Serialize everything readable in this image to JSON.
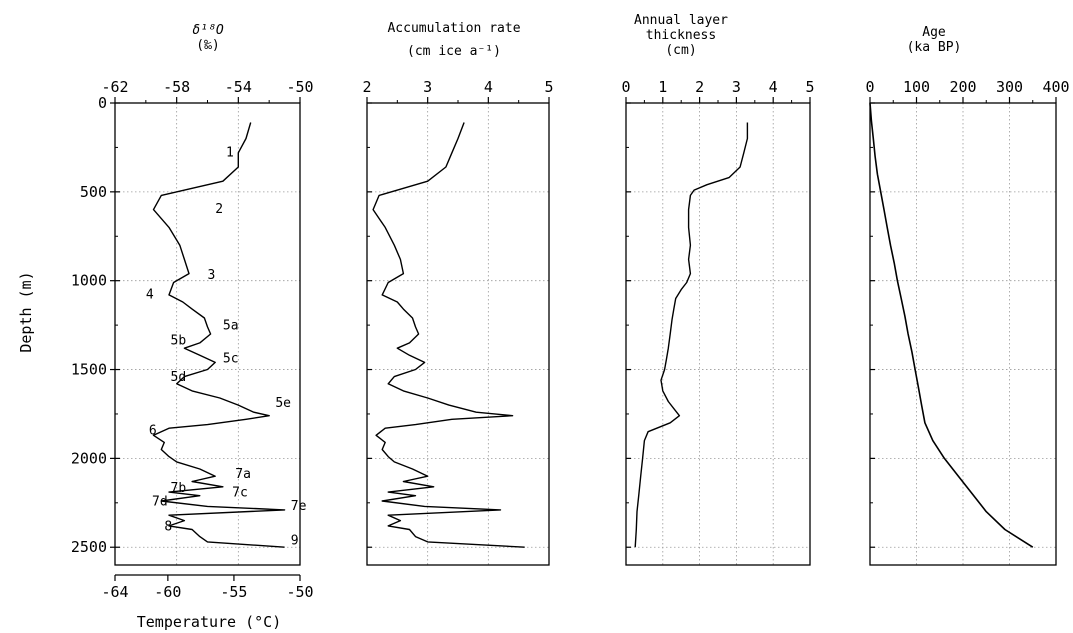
{
  "y_axis": {
    "label": "Depth (m)",
    "ticks": [
      "0",
      "500",
      "1000",
      "1500",
      "2000",
      "2500"
    ]
  },
  "chart_data": [
    {
      "type": "line",
      "panel": "d18O",
      "title": "δ¹⁸O",
      "title_unit": "(‰)",
      "xlim": [
        -62,
        -50
      ],
      "ylim": [
        0,
        2600
      ],
      "x_ticks": [
        "-62",
        "-58",
        "-54",
        "-50"
      ],
      "secondary_axis": {
        "label": "Temperature (°C)",
        "xlim": [
          -64,
          -50
        ],
        "ticks": [
          "-64",
          "-60",
          "-55",
          "-50"
        ]
      },
      "annotations": [
        {
          "text": "1",
          "x": -54.8,
          "y": 300
        },
        {
          "text": "2",
          "x": -55.5,
          "y": 620
        },
        {
          "text": "3",
          "x": -56.0,
          "y": 990
        },
        {
          "text": "4",
          "x": -60.0,
          "y": 1100
        },
        {
          "text": "5a",
          "x": -55.0,
          "y": 1275
        },
        {
          "text": "5b",
          "x": -58.4,
          "y": 1360
        },
        {
          "text": "5c",
          "x": -55.0,
          "y": 1460
        },
        {
          "text": "5d",
          "x": -58.4,
          "y": 1565
        },
        {
          "text": "5e",
          "x": -51.6,
          "y": 1710
        },
        {
          "text": "6",
          "x": -59.8,
          "y": 1865
        },
        {
          "text": "7a",
          "x": -54.2,
          "y": 2110
        },
        {
          "text": "7b",
          "x": -58.4,
          "y": 2190
        },
        {
          "text": "7c",
          "x": -54.4,
          "y": 2215
        },
        {
          "text": "7d",
          "x": -59.6,
          "y": 2265
        },
        {
          "text": "7e",
          "x": -50.6,
          "y": 2290
        },
        {
          "text": "8",
          "x": -58.8,
          "y": 2405
        },
        {
          "text": "9",
          "x": -50.6,
          "y": 2485
        }
      ],
      "y": [
        110,
        200,
        280,
        360,
        440,
        480,
        520,
        600,
        700,
        800,
        880,
        960,
        1010,
        1080,
        1120,
        1160,
        1210,
        1260,
        1300,
        1350,
        1380,
        1420,
        1460,
        1500,
        1540,
        1580,
        1620,
        1660,
        1700,
        1740,
        1760,
        1780,
        1810,
        1830,
        1870,
        1910,
        1950,
        1990,
        2020,
        2060,
        2100,
        2130,
        2160,
        2190,
        2210,
        2240,
        2270,
        2290,
        2320,
        2350,
        2380,
        2400,
        2440,
        2470,
        2500
      ],
      "values": [
        -53.2,
        -53.5,
        -54.0,
        -54.0,
        -55.0,
        -57.0,
        -59.0,
        -59.5,
        -58.5,
        -57.8,
        -57.5,
        -57.2,
        -58.2,
        -58.5,
        -57.6,
        -57.0,
        -56.2,
        -56.0,
        -55.8,
        -56.5,
        -57.5,
        -56.5,
        -55.5,
        -56.0,
        -57.5,
        -58.0,
        -57.0,
        -55.2,
        -54.0,
        -53.0,
        -52.0,
        -53.5,
        -56.0,
        -58.5,
        -59.5,
        -58.8,
        -59.0,
        -58.5,
        -58.0,
        -56.5,
        -55.5,
        -57.0,
        -55.0,
        -58.5,
        -56.5,
        -59.0,
        -56.0,
        -51.0,
        -58.5,
        -57.5,
        -58.5,
        -57.0,
        -56.5,
        -56.0,
        -51.0
      ]
    },
    {
      "type": "line",
      "panel": "accumulation",
      "title": "Accumulation rate",
      "title_unit": "(cm ice  a⁻¹)",
      "xlim": [
        2,
        5
      ],
      "ylim": [
        0,
        2600
      ],
      "x_ticks": [
        "2",
        "3",
        "4",
        "5"
      ],
      "y": [
        110,
        200,
        280,
        360,
        440,
        480,
        520,
        600,
        700,
        800,
        880,
        960,
        1010,
        1080,
        1120,
        1160,
        1210,
        1260,
        1300,
        1350,
        1380,
        1420,
        1460,
        1500,
        1540,
        1580,
        1620,
        1660,
        1700,
        1740,
        1760,
        1780,
        1810,
        1830,
        1870,
        1910,
        1950,
        1990,
        2020,
        2060,
        2100,
        2130,
        2160,
        2190,
        2210,
        2240,
        2270,
        2290,
        2320,
        2350,
        2380,
        2400,
        2440,
        2470,
        2500
      ],
      "values": [
        3.6,
        3.5,
        3.4,
        3.3,
        3.0,
        2.6,
        2.2,
        2.1,
        2.3,
        2.45,
        2.55,
        2.6,
        2.35,
        2.25,
        2.5,
        2.6,
        2.75,
        2.8,
        2.85,
        2.7,
        2.5,
        2.7,
        2.95,
        2.8,
        2.45,
        2.35,
        2.6,
        3.0,
        3.35,
        3.8,
        4.4,
        3.4,
        2.8,
        2.3,
        2.15,
        2.3,
        2.25,
        2.35,
        2.45,
        2.75,
        3.0,
        2.6,
        3.1,
        2.35,
        2.8,
        2.25,
        2.95,
        4.2,
        2.35,
        2.55,
        2.35,
        2.7,
        2.8,
        3.0,
        4.6
      ]
    },
    {
      "type": "line",
      "panel": "annual_layer",
      "title": "Annual layer",
      "title_line2": "thickness",
      "title_unit": "(cm)",
      "xlim": [
        0,
        5
      ],
      "ylim": [
        0,
        2600
      ],
      "x_ticks": [
        "0",
        "1",
        "2",
        "3",
        "4",
        "5"
      ],
      "y": [
        110,
        200,
        280,
        360,
        420,
        460,
        490,
        520,
        600,
        700,
        800,
        880,
        960,
        1010,
        1050,
        1100,
        1160,
        1220,
        1300,
        1380,
        1440,
        1500,
        1560,
        1620,
        1680,
        1720,
        1760,
        1800,
        1850,
        1900,
        2000,
        2100,
        2200,
        2300,
        2400,
        2500
      ],
      "values": [
        3.3,
        3.3,
        3.2,
        3.1,
        2.8,
        2.2,
        1.85,
        1.75,
        1.7,
        1.7,
        1.75,
        1.7,
        1.75,
        1.65,
        1.5,
        1.35,
        1.3,
        1.25,
        1.2,
        1.15,
        1.1,
        1.05,
        0.95,
        1.0,
        1.15,
        1.3,
        1.45,
        1.2,
        0.6,
        0.5,
        0.45,
        0.4,
        0.35,
        0.3,
        0.28,
        0.25
      ]
    },
    {
      "type": "line",
      "panel": "age",
      "title": "Age",
      "title_unit": "(ka BP)",
      "xlim": [
        0,
        400
      ],
      "ylim": [
        0,
        2600
      ],
      "x_ticks": [
        "0",
        "100",
        "200",
        "300",
        "400"
      ],
      "y": [
        0,
        100,
        200,
        300,
        400,
        500,
        600,
        700,
        800,
        900,
        1000,
        1100,
        1200,
        1300,
        1400,
        1500,
        1600,
        1700,
        1800,
        1900,
        2000,
        2100,
        2200,
        2300,
        2400,
        2500
      ],
      "values": [
        0,
        3,
        7,
        11,
        16,
        23,
        30,
        37,
        44,
        52,
        59,
        67,
        75,
        82,
        90,
        97,
        104,
        111,
        118,
        135,
        160,
        190,
        220,
        250,
        290,
        350
      ]
    }
  ]
}
